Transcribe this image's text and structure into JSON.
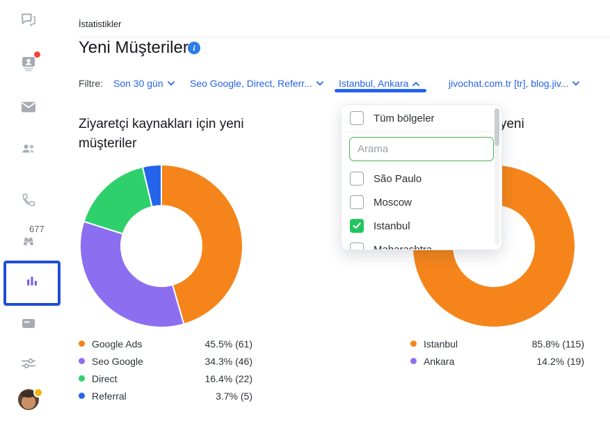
{
  "breadcrumb": "İstatistikler",
  "page": {
    "title": "Yeni Müşteriler"
  },
  "filters": {
    "label": "Filtre:",
    "date_range": "Son 30 gün",
    "sources": "Seo Google, Direct, Referr...",
    "regions": "Istanbul, Ankara",
    "sites": "jivochat.com.tr [tr], blog.jiv..."
  },
  "region_dropdown": {
    "select_all": "Tüm bölgeler",
    "search_placeholder": "Arama",
    "options": [
      {
        "label": "São Paulo",
        "checked": false
      },
      {
        "label": "Moscow",
        "checked": false
      },
      {
        "label": "Istanbul",
        "checked": true
      },
      {
        "label": "Maharashtra",
        "checked": false
      }
    ]
  },
  "sidebar": {
    "visitors_count": "677"
  },
  "chart_data": [
    {
      "type": "pie",
      "donut": true,
      "title": "Ziyaretçi kaynakları için yeni müşteriler",
      "labels": [
        "Google Ads",
        "Seo Google",
        "Direct",
        "Referral"
      ],
      "values": [
        45.5,
        34.3,
        16.4,
        3.7
      ],
      "counts": [
        61,
        46,
        22,
        5
      ],
      "display_values": [
        "45.5% (61)",
        "34.3% (46)",
        "16.4% (22)",
        "3.7% (5)"
      ],
      "colors": [
        "#f5851b",
        "#8c6ff0",
        "#2ed06b",
        "#2563eb"
      ],
      "legend_position": "bottom"
    },
    {
      "type": "pie",
      "donut": true,
      "title": "Bölgelere göre yeni müşteriler",
      "labels": [
        "Istanbul",
        "Ankara"
      ],
      "values": [
        85.8,
        14.2
      ],
      "counts": [
        115,
        19
      ],
      "display_values": [
        "85.8% (115)",
        "14.2% (19)"
      ],
      "colors": [
        "#f5851b",
        "#8c6ff0"
      ],
      "legend_position": "bottom"
    }
  ],
  "theme": {
    "accent_blue": "#2563eb",
    "highlight_border": "#1d4ed8",
    "checkbox_green": "#22c55e",
    "search_border_green": "#4caf50",
    "info_icon_blue": "#2b7de9",
    "icon_gray": "#a6abb2",
    "stats_icon_purple": "#7a5cf5"
  }
}
